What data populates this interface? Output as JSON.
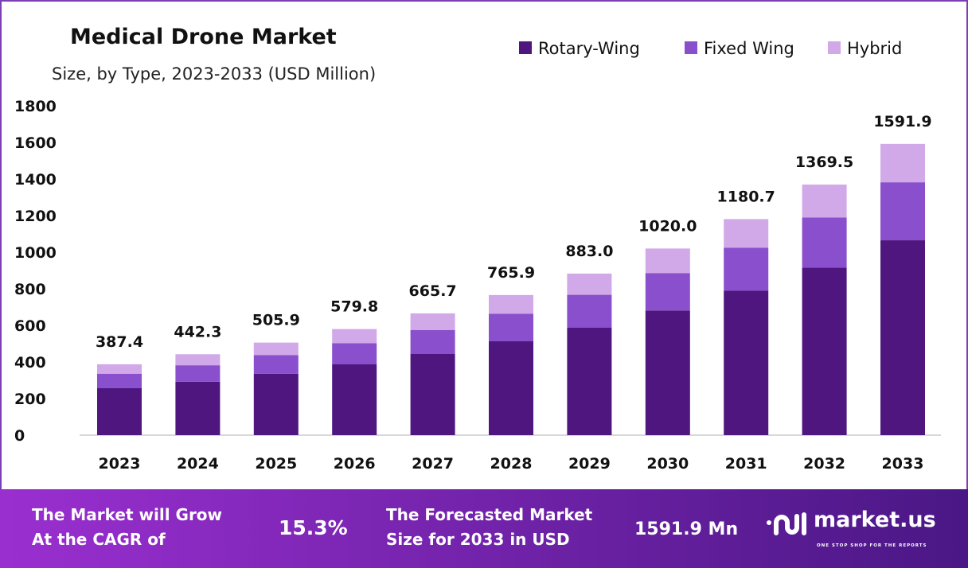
{
  "chart_data": {
    "type": "bar",
    "stacked": true,
    "title": "Medical Drone Market",
    "subtitle": "Size, by Type, 2023-2033 (USD Million)",
    "categories": [
      "2023",
      "2024",
      "2025",
      "2026",
      "2027",
      "2028",
      "2029",
      "2030",
      "2031",
      "2032",
      "2033"
    ],
    "series": [
      {
        "name": "Rotary-Wing",
        "color": "#4f1680",
        "values": [
          258,
          292,
          336,
          387,
          445,
          513,
          587,
          681,
          789,
          915,
          1065
        ]
      },
      {
        "name": "Fixed Wing",
        "color": "#8a4fcc",
        "values": [
          78,
          90,
          101,
          116,
          130,
          150,
          180,
          205,
          235,
          275,
          317
        ]
      },
      {
        "name": "Hybrid",
        "color": "#d1a8e8",
        "values": [
          51.4,
          60.3,
          68.9,
          76.8,
          90.7,
          102.9,
          116,
          134,
          156.7,
          179.5,
          209.9
        ]
      }
    ],
    "totals": [
      "387.4",
      "442.3",
      "505.9",
      "579.8",
      "665.7",
      "765.9",
      "883.0",
      "1020.0",
      "1180.7",
      "1369.5",
      "1591.9"
    ],
    "yticks": [
      "0",
      "200",
      "400",
      "600",
      "800",
      "1000",
      "1200",
      "1400",
      "1600",
      "1800"
    ],
    "ylim": [
      0,
      1800
    ],
    "xlabel": "",
    "ylabel": "",
    "grid": false,
    "legend_position": "top-right"
  },
  "footer": {
    "cagr_label_1": "The Market will Grow",
    "cagr_label_2": "At the CAGR of",
    "cagr_value": "15.3%",
    "forecast_label_1": "The Forecasted Market",
    "forecast_label_2": "Size for 2033 in USD",
    "forecast_value": "1591.9 Mn",
    "brand": "market.us",
    "brand_tagline": "ONE STOP SHOP FOR THE REPORTS",
    "gradient_start": "#9a2fd0",
    "gradient_end": "#4a1785"
  }
}
